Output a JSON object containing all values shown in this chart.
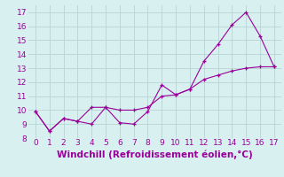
{
  "xlabel": "Windchill (Refroidissement éolien,°C)",
  "x_line1": [
    0,
    1,
    2,
    3,
    4,
    5,
    6,
    7,
    8,
    9,
    10,
    11,
    12,
    13,
    14,
    15,
    16,
    17
  ],
  "y_line1": [
    9.9,
    8.5,
    9.4,
    9.2,
    9.0,
    10.2,
    9.1,
    9.0,
    9.9,
    11.8,
    11.1,
    11.5,
    13.5,
    14.7,
    16.1,
    17.0,
    15.3,
    13.1
  ],
  "x_line2": [
    0,
    1,
    2,
    3,
    4,
    5,
    6,
    7,
    8,
    9,
    10,
    11,
    12,
    13,
    14,
    15,
    16,
    17
  ],
  "y_line2": [
    9.9,
    8.5,
    9.4,
    9.2,
    10.2,
    10.2,
    10.0,
    10.0,
    10.2,
    11.0,
    11.1,
    11.5,
    12.2,
    12.5,
    12.8,
    13.0,
    13.1,
    13.1
  ],
  "line_color": "#990099",
  "bg_color": "#d8f0f0",
  "grid_color": "#b8d4d4",
  "xlim": [
    -0.5,
    17.5
  ],
  "ylim": [
    8,
    17.5
  ],
  "xticks": [
    0,
    1,
    2,
    3,
    4,
    5,
    6,
    7,
    8,
    9,
    10,
    11,
    12,
    13,
    14,
    15,
    16,
    17
  ],
  "yticks": [
    8,
    9,
    10,
    11,
    12,
    13,
    14,
    15,
    16,
    17
  ],
  "tick_color": "#990099",
  "label_fontsize": 6.5,
  "xlabel_fontsize": 7.5
}
